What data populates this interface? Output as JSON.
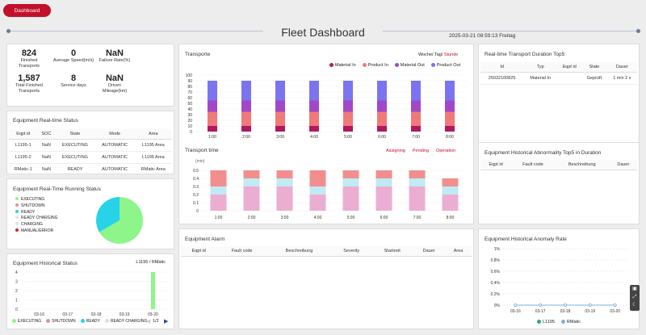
{
  "nav": {
    "tab_label": "Dashboard"
  },
  "header": {
    "title": "Fleet Dashboard",
    "datetime": "2025-03-21 08:59:13 Freitag"
  },
  "stats": [
    {
      "value": "824",
      "label": "Finished Transports"
    },
    {
      "value": "0",
      "label": "Average Speed(m/s)"
    },
    {
      "value": "NaN",
      "label": "Failure Rate(%)"
    },
    {
      "value": "1,587",
      "label": "Total Finished Transports"
    },
    {
      "value": "8",
      "label": "Service days"
    },
    {
      "value": "NaN",
      "label": "Driven Mileage(km)"
    }
  ],
  "realtime_status": {
    "title": "Equipment Real-time Status",
    "columns": [
      "Eqpt id",
      "SOC",
      "State",
      "Mode",
      "Area"
    ],
    "rows": [
      [
        "L1195-1",
        "NaN",
        "EXECUTING",
        "AUTOMATIC",
        "L1195 Area"
      ],
      [
        "L1195-2",
        "NaN",
        "EXECUTING",
        "AUTOMATIC",
        "L1195 Area"
      ],
      [
        "RMatic-1",
        "NaN",
        "READY",
        "AUTOMATIC",
        "RMatic Area"
      ]
    ]
  },
  "running_status": {
    "title": "Equipment Real-Time Running Status",
    "legend": [
      {
        "label": "EXECUTING",
        "color": "#8ef58a"
      },
      {
        "label": "SHUTDOWN",
        "color": "#f08c8c"
      },
      {
        "label": "READY",
        "color": "#27d3e8"
      },
      {
        "label": "READY CHARGING",
        "color": "#e8e8e8"
      },
      {
        "label": "CHARGING",
        "color": "#e0e0e0"
      },
      {
        "label": "MANUAL/ERROR",
        "color": "#d9242a"
      }
    ],
    "pie": [
      {
        "label": "EXECUTING",
        "value": 2,
        "color": "#8ef58a"
      },
      {
        "label": "READY",
        "value": 1,
        "color": "#27d3e8"
      }
    ]
  },
  "historical_status": {
    "title": "Equipment Historical Status",
    "selector": "L1195 / RMatic",
    "categories": [
      "03-16",
      "03-17",
      "03-18",
      "03-19",
      "03-20"
    ],
    "values": [
      0,
      0,
      0,
      0,
      4
    ],
    "yticks": [
      "4",
      "3",
      "2",
      "1",
      "0"
    ],
    "legend": [
      {
        "label": "EXECUTING",
        "color": "#8ef58a"
      },
      {
        "label": "SHUTDOWN",
        "color": "#f08c8c"
      },
      {
        "label": "READY",
        "color": "#27d3e8"
      },
      {
        "label": "READY CHARGING",
        "color": "#e0e0e0"
      }
    ],
    "pager": "1/2"
  },
  "transporte": {
    "title": "Transporte",
    "period_links": [
      "Woche/",
      "Tag/",
      "Stunde"
    ],
    "legend": [
      {
        "label": "Material In",
        "color": "#b0195f"
      },
      {
        "label": "Product In",
        "color": "#f07a7a"
      },
      {
        "label": "Material Out",
        "color": "#a247c7"
      },
      {
        "label": "Product Out",
        "color": "#7b74f0"
      }
    ]
  },
  "transport_time": {
    "title": "Transport time",
    "unit": "(min)",
    "legend": [
      "Assigning",
      "Pending",
      "Operation"
    ],
    "yticks": [
      "0.5",
      "0.4",
      "0.3",
      "0.2",
      "0.1",
      "0"
    ]
  },
  "alarm": {
    "title": "Equipment Alarm",
    "columns": [
      "Eqpt id",
      "Fault code",
      "Beschreibung",
      "Severity",
      "Startzeit",
      "Dauer",
      "Area"
    ]
  },
  "transport_duration": {
    "title": "Real-time Transport Duration Top5",
    "columns": [
      "Id",
      "Typ",
      "Eqpt id",
      "State",
      "Dauer"
    ],
    "rows": [
      [
        "25032100825",
        "Material In",
        "",
        "Geprüft",
        "1 min 2 s"
      ]
    ]
  },
  "abnormality": {
    "title": "Equipment Historical Abnormality Top5 in Duration",
    "columns": [
      "Eqpt id",
      "Fault code",
      "Beschreibung",
      "Dauer"
    ]
  },
  "anomaly_rate": {
    "title": "Equipment Historical Anomaly Rate",
    "yticks": [
      "1%",
      "0.8%",
      "0.6%",
      "0.4%",
      "0.2%",
      "0%"
    ],
    "categories": [
      "03-16",
      "03-17",
      "03-18",
      "03-19",
      "03-20"
    ],
    "legend": [
      {
        "label": "L1195",
        "color": "#3aa08a"
      },
      {
        "label": "RMatic",
        "color": "#7ab0e8"
      }
    ]
  },
  "chart_data": [
    {
      "type": "bar",
      "title": "Transporte",
      "categories": [
        "1:00",
        "2:00",
        "3:00",
        "4:00",
        "5:00",
        "6:00",
        "7:00",
        "8:00"
      ],
      "ylim": [
        0,
        100
      ],
      "yticks": [
        0,
        10,
        20,
        30,
        40,
        50,
        60,
        70,
        80,
        90,
        100
      ],
      "series": [
        {
          "name": "Material In",
          "values": [
            10,
            10,
            10,
            10,
            10,
            10,
            10,
            10
          ]
        },
        {
          "name": "Product In",
          "values": [
            25,
            25,
            25,
            25,
            25,
            25,
            25,
            25
          ]
        },
        {
          "name": "Material Out",
          "values": [
            20,
            20,
            20,
            20,
            20,
            20,
            20,
            20
          ]
        },
        {
          "name": "Product Out",
          "values": [
            35,
            35,
            35,
            35,
            35,
            35,
            35,
            35
          ]
        }
      ]
    },
    {
      "type": "bar",
      "title": "Transport time",
      "categories": [
        "1:00",
        "2:00",
        "3:00",
        "4:00",
        "5:00",
        "6:00",
        "7:00",
        "8:00"
      ],
      "ylim": [
        0,
        0.5
      ],
      "series": [
        {
          "name": "Assigning",
          "values": [
            0.2,
            0.3,
            0.3,
            0.2,
            0.3,
            0.3,
            0.3,
            0.2
          ]
        },
        {
          "name": "Pending",
          "values": [
            0.1,
            0.1,
            0.1,
            0.1,
            0.1,
            0.1,
            0.1,
            0.1
          ]
        },
        {
          "name": "Operation",
          "values": [
            0.2,
            0.1,
            0.1,
            0.2,
            0.1,
            0.1,
            0.1,
            0.1
          ]
        }
      ]
    },
    {
      "type": "line",
      "title": "Equipment Historical Anomaly Rate",
      "categories": [
        "03-16",
        "03-17",
        "03-18",
        "03-19",
        "03-20"
      ],
      "ylim": [
        0,
        1
      ],
      "series": [
        {
          "name": "L1195",
          "values": [
            0,
            0,
            0,
            0,
            0
          ]
        },
        {
          "name": "RMatic",
          "values": [
            0,
            0,
            0,
            0,
            0
          ]
        }
      ]
    },
    {
      "type": "bar",
      "title": "Equipment Historical Status",
      "categories": [
        "03-16",
        "03-17",
        "03-18",
        "03-19",
        "03-20"
      ],
      "ylim": [
        0,
        4
      ],
      "series": [
        {
          "name": "EXECUTING",
          "values": [
            0,
            0,
            0,
            0,
            4
          ]
        }
      ]
    }
  ]
}
